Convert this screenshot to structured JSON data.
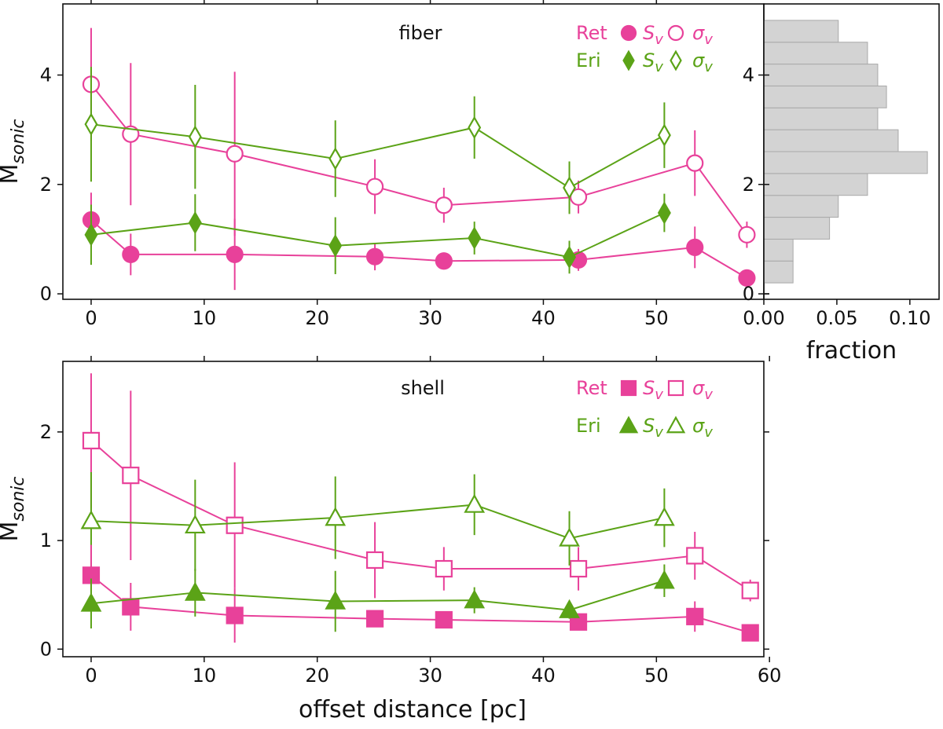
{
  "colors": {
    "ret": "#e8419a",
    "eri": "#5ba317",
    "hist_fill": "#d3d3d3",
    "hist_edge": "#a9a9a9",
    "axis": "#111111"
  },
  "xlabel": "offset distance [pc]",
  "chart_data": [
    {
      "type": "line",
      "panel": "fiber",
      "title": "fiber",
      "ylabel": "M",
      "ylabel_sub": "sonic",
      "xlim": [
        -2.5,
        59.5
      ],
      "ylim": [
        -0.1,
        5.3
      ],
      "xticks": [
        0,
        10,
        20,
        30,
        40,
        50
      ],
      "xtick_labels": [
        "0",
        "10",
        "20",
        "30",
        "40",
        "50"
      ],
      "yticks": [
        0,
        2,
        4
      ],
      "ytick_labels": [
        "0",
        "2",
        "4"
      ],
      "legend": [
        {
          "name": "Ret",
          "color_key": "ret",
          "filled_marker": "circle",
          "filled_label": "S",
          "open_marker": "circle",
          "open_label": "σ",
          "sub": "v"
        },
        {
          "name": "Eri",
          "color_key": "eri",
          "filled_marker": "diamond",
          "filled_label": "S",
          "open_marker": "diamond",
          "open_label": "σ",
          "sub": "v"
        }
      ],
      "series": [
        {
          "name": "Ret σv",
          "color_key": "ret",
          "marker": "circle",
          "filled": false,
          "x": [
            0,
            3.5,
            12.7,
            25.1,
            31.2,
            43.1,
            53.4,
            58.0
          ],
          "y": [
            3.83,
            2.92,
            2.56,
            1.96,
            1.62,
            1.77,
            2.39,
            1.08
          ],
          "err": [
            1.03,
            1.3,
            1.5,
            0.5,
            0.32,
            0.3,
            0.6,
            0.24
          ]
        },
        {
          "name": "Eri σv",
          "color_key": "eri",
          "marker": "diamond",
          "filled": false,
          "x": [
            0,
            9.2,
            21.6,
            33.9,
            42.3,
            50.7
          ],
          "y": [
            3.1,
            2.87,
            2.47,
            3.04,
            1.94,
            2.9
          ],
          "err": [
            1.05,
            0.95,
            0.7,
            0.57,
            0.48,
            0.6
          ]
        },
        {
          "name": "Ret Sv",
          "color_key": "ret",
          "marker": "circle",
          "filled": true,
          "x": [
            0,
            3.5,
            12.7,
            25.1,
            31.2,
            43.1,
            53.4,
            58.0
          ],
          "y": [
            1.35,
            0.72,
            0.72,
            0.68,
            0.6,
            0.62,
            0.85,
            0.29
          ],
          "err": [
            0.5,
            0.38,
            0.65,
            0.25,
            0.15,
            0.2,
            0.38,
            0.1
          ]
        },
        {
          "name": "Eri Sv",
          "color_key": "eri",
          "marker": "diamond",
          "filled": true,
          "x": [
            0,
            9.2,
            21.6,
            33.9,
            42.3,
            50.7
          ],
          "y": [
            1.08,
            1.3,
            0.88,
            1.02,
            0.67,
            1.48
          ],
          "err": [
            0.55,
            0.52,
            0.52,
            0.3,
            0.3,
            0.35
          ]
        }
      ]
    },
    {
      "type": "histogram",
      "panel": "fraction",
      "xlabel": "fraction",
      "xlim": [
        0.0,
        0.12
      ],
      "xticks": [
        0.0,
        0.05,
        0.1
      ],
      "xtick_labels": [
        "0.00",
        "0.05",
        "0.10"
      ],
      "ylim": [
        -0.1,
        5.3
      ],
      "yticks": [
        0,
        2,
        4
      ],
      "ytick_labels": [
        "0",
        "2",
        "4"
      ],
      "bins": [
        0.2,
        0.6,
        1.0,
        1.4,
        1.8,
        2.2,
        2.6,
        3.0,
        3.4,
        3.8,
        4.2,
        4.6,
        5.0
      ],
      "fractions": [
        0.02,
        0.02,
        0.045,
        0.051,
        0.071,
        0.112,
        0.092,
        0.078,
        0.084,
        0.078,
        0.071,
        0.051
      ]
    },
    {
      "type": "line",
      "panel": "shell",
      "title": "shell",
      "ylabel": "M",
      "ylabel_sub": "sonic",
      "xlim": [
        -2.5,
        59.5
      ],
      "ylim": [
        -0.07,
        2.65
      ],
      "xticks": [
        0,
        10,
        20,
        30,
        40,
        50,
        60
      ],
      "xtick_labels": [
        "0",
        "10",
        "20",
        "30",
        "40",
        "50",
        "60"
      ],
      "yticks": [
        0,
        1,
        2
      ],
      "ytick_labels": [
        "0",
        "1",
        "2"
      ],
      "legend": [
        {
          "name": "Ret",
          "color_key": "ret",
          "filled_marker": "square",
          "filled_label": "S",
          "open_marker": "square",
          "open_label": "σ",
          "sub": "v"
        },
        {
          "name": "Eri",
          "color_key": "eri",
          "filled_marker": "triangle",
          "filled_label": "S",
          "open_marker": "triangle",
          "open_label": "σ",
          "sub": "v"
        }
      ],
      "series": [
        {
          "name": "Ret σv",
          "color_key": "ret",
          "marker": "square",
          "filled": false,
          "x": [
            0,
            3.5,
            12.7,
            25.1,
            31.2,
            43.1,
            53.4,
            58.3
          ],
          "y": [
            1.92,
            1.6,
            1.14,
            0.82,
            0.74,
            0.74,
            0.86,
            0.54
          ],
          "err": [
            0.62,
            0.78,
            0.58,
            0.35,
            0.2,
            0.2,
            0.22,
            0.1
          ]
        },
        {
          "name": "Eri σv",
          "color_key": "eri",
          "marker": "triangle",
          "filled": false,
          "x": [
            0,
            9.2,
            21.6,
            33.9,
            42.3,
            50.7
          ],
          "y": [
            1.18,
            1.14,
            1.21,
            1.33,
            1.02,
            1.21
          ],
          "err": [
            0.45,
            0.42,
            0.38,
            0.28,
            0.25,
            0.27
          ]
        },
        {
          "name": "Ret Sv",
          "color_key": "ret",
          "marker": "square",
          "filled": true,
          "x": [
            0,
            3.5,
            12.7,
            25.1,
            31.2,
            43.1,
            53.4,
            58.3
          ],
          "y": [
            0.68,
            0.39,
            0.31,
            0.28,
            0.27,
            0.25,
            0.3,
            0.15
          ],
          "err": [
            0.28,
            0.22,
            0.25,
            0.05,
            0.04,
            0.06,
            0.14,
            0.03
          ]
        },
        {
          "name": "Eri Sv",
          "color_key": "eri",
          "marker": "triangle",
          "filled": true,
          "x": [
            0,
            9.2,
            21.6,
            33.9,
            42.3,
            50.7
          ],
          "y": [
            0.42,
            0.52,
            0.44,
            0.45,
            0.36,
            0.63
          ],
          "err": [
            0.23,
            0.22,
            0.28,
            0.12,
            0.08,
            0.15
          ]
        }
      ]
    }
  ]
}
